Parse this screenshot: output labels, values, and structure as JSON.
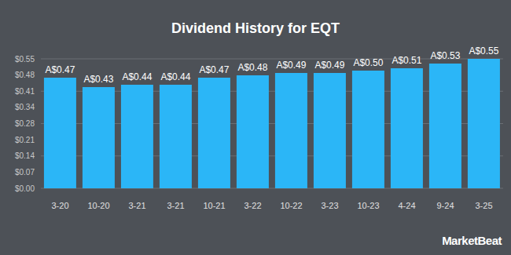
{
  "chart_data": {
    "type": "bar",
    "title": "Dividend History for EQT",
    "categories": [
      "3-20",
      "10-20",
      "3-21",
      "3-21",
      "10-21",
      "3-22",
      "10-22",
      "3-23",
      "10-23",
      "4-24",
      "9-24",
      "3-25"
    ],
    "values": [
      0.47,
      0.43,
      0.44,
      0.44,
      0.47,
      0.48,
      0.49,
      0.49,
      0.5,
      0.51,
      0.53,
      0.55
    ],
    "value_labels": [
      "A$0.47",
      "A$0.43",
      "A$0.44",
      "A$0.44",
      "A$0.47",
      "A$0.48",
      "A$0.49",
      "A$0.49",
      "A$0.50",
      "A$0.51",
      "A$0.53",
      "A$0.55"
    ],
    "color": "#2bb6f7",
    "ylim": [
      0,
      0.55
    ],
    "yticks": [
      {
        "value": 0,
        "label": "$0.00"
      },
      {
        "value": 0.06875,
        "label": "$0.07"
      },
      {
        "value": 0.1375,
        "label": "$0.14"
      },
      {
        "value": 0.20625,
        "label": "$0.21"
      },
      {
        "value": 0.275,
        "label": "$0.28"
      },
      {
        "value": 0.34375,
        "label": "$0.34"
      },
      {
        "value": 0.4125,
        "label": "$0.41"
      },
      {
        "value": 0.48125,
        "label": "$0.48"
      },
      {
        "value": 0.55,
        "label": "$0.55"
      }
    ],
    "grid": true,
    "data_labels": true,
    "annotations": [
      "MarketBeat"
    ]
  }
}
